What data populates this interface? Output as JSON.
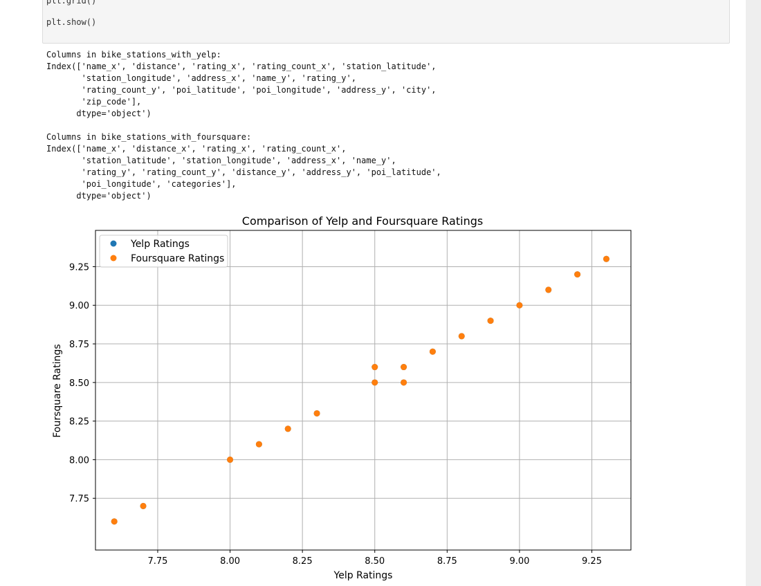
{
  "cell": {
    "code_line_1": "plt.grid()",
    "code_line_2": "plt.show()"
  },
  "output": {
    "text": "Columns in bike_stations_with_yelp:\nIndex(['name_x', 'distance', 'rating_x', 'rating_count_x', 'station_latitude',\n       'station_longitude', 'address_x', 'name_y', 'rating_y',\n       'rating_count_y', 'poi_latitude', 'poi_longitude', 'address_y', 'city',\n       'zip_code'],\n      dtype='object')\n\nColumns in bike_stations_with_foursquare:\nIndex(['name_x', 'distance_x', 'rating_x', 'rating_count_x',\n       'station_latitude', 'station_longitude', 'address_x', 'name_y',\n       'rating_y', 'rating_count_y', 'distance_y', 'address_y', 'poi_latitude',\n       'poi_longitude', 'categories'],\n      dtype='object')"
  },
  "colors": {
    "yelp": "#1f77b4",
    "foursquare": "#ff7f0e",
    "grid": "#b0b0b0",
    "code_bg": "#f5f5f5"
  },
  "chart_data": {
    "type": "scatter",
    "title": "Comparison of Yelp and Foursquare Ratings",
    "xlabel": "Yelp Ratings",
    "ylabel": "Foursquare Ratings",
    "xlim": [
      7.535,
      9.385
    ],
    "ylim": [
      7.415,
      9.485
    ],
    "xticks": [
      7.75,
      8.0,
      8.25,
      8.5,
      8.75,
      9.0,
      9.25
    ],
    "xtick_labels": [
      "7.75",
      "8.00",
      "8.25",
      "8.50",
      "8.75",
      "9.00",
      "9.25"
    ],
    "yticks": [
      7.75,
      8.0,
      8.25,
      8.5,
      8.75,
      9.0,
      9.25
    ],
    "ytick_labels": [
      "7.75",
      "8.00",
      "8.25",
      "8.50",
      "8.75",
      "9.00",
      "9.25"
    ],
    "grid": true,
    "legend_position": "top-left",
    "series": [
      {
        "name": "Yelp Ratings",
        "color": "#1f77b4",
        "x": [
          7.6,
          7.7,
          8.0,
          8.1,
          8.2,
          8.3,
          8.5,
          8.5,
          8.6,
          8.6,
          8.7,
          8.8,
          8.9,
          9.0,
          9.1,
          9.2,
          9.3
        ],
        "y": [
          7.6,
          7.7,
          8.0,
          8.1,
          8.2,
          8.3,
          8.5,
          8.6,
          8.5,
          8.6,
          8.7,
          8.8,
          8.9,
          9.0,
          9.1,
          9.2,
          9.3
        ]
      },
      {
        "name": "Foursquare Ratings",
        "color": "#ff7f0e",
        "x": [
          7.6,
          7.7,
          8.0,
          8.1,
          8.2,
          8.3,
          8.5,
          8.5,
          8.6,
          8.6,
          8.7,
          8.8,
          8.9,
          9.0,
          9.1,
          9.2,
          9.3
        ],
        "y": [
          7.6,
          7.7,
          8.0,
          8.1,
          8.2,
          8.3,
          8.5,
          8.6,
          8.5,
          8.6,
          8.7,
          8.8,
          8.9,
          9.0,
          9.1,
          9.2,
          9.3
        ]
      }
    ]
  }
}
